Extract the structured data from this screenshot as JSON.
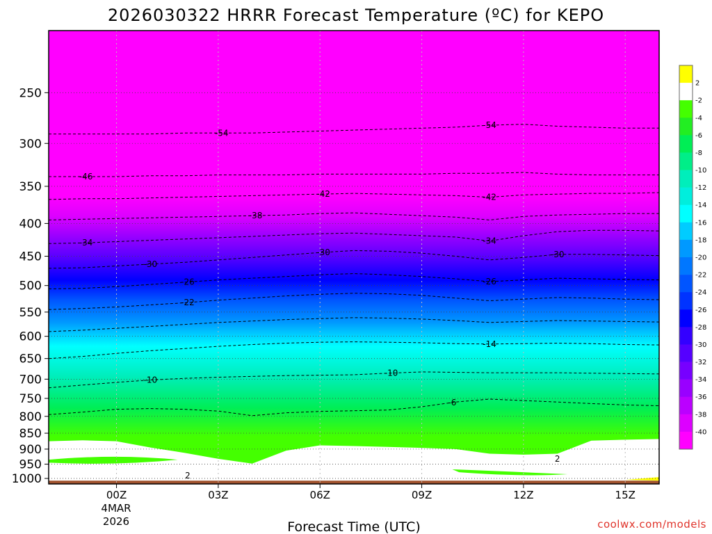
{
  "chart_data": {
    "type": "heatmap",
    "title": "2026030322 HRRR Forecast Temperature (ºC) for KEPO",
    "xlabel": "Forecast Time (UTC)",
    "ylabel": "",
    "credit": "coolwx.com/models",
    "x_ticks": [
      "00Z",
      "03Z",
      "06Z",
      "09Z",
      "12Z",
      "15Z"
    ],
    "x_tick_hours": [
      0,
      3,
      6,
      9,
      12,
      15
    ],
    "x_range_hours": [
      -2,
      16
    ],
    "date_label": [
      "4MAR",
      "2026"
    ],
    "y_ticks": [
      250,
      300,
      350,
      400,
      450,
      500,
      550,
      600,
      650,
      700,
      750,
      800,
      850,
      900,
      950,
      1000
    ],
    "y_range_hPa": [
      200,
      1020
    ],
    "y_scale": "log",
    "colorbar": {
      "labels": [
        "2",
        "-2",
        "-4",
        "-6",
        "-8",
        "-10",
        "-12",
        "-14",
        "-16",
        "-18",
        "-20",
        "-22",
        "-24",
        "-26",
        "-28",
        "-30",
        "-32",
        "-34",
        "-36",
        "-38",
        "-40"
      ],
      "colors": [
        "#ffff00",
        "#ffffff",
        "#44ff00",
        "#22ee22",
        "#00ee55",
        "#00ee88",
        "#00eebb",
        "#00eedd",
        "#00ffff",
        "#00ccff",
        "#0099ff",
        "#0077ff",
        "#0055ff",
        "#0033ff",
        "#0000ff",
        "#3300ff",
        "#5500ff",
        "#7700ff",
        "#9900ff",
        "#bb00ff",
        "#dd00ff",
        "#ff00ff"
      ]
    },
    "time_hours": [
      -2,
      -1,
      0,
      1,
      2,
      3,
      4,
      5,
      6,
      7,
      8,
      9,
      10,
      11,
      12,
      13,
      14,
      15,
      16
    ],
    "isotherms": [
      {
        "t": -54,
        "label": "-54",
        "label_hours": [
          3.1,
          11.0
        ],
        "hPa": [
          290,
          290,
          290,
          290,
          289,
          289,
          289,
          288,
          287,
          286,
          285,
          284,
          283,
          281,
          280,
          282,
          283,
          284,
          284
        ]
      },
      {
        "t": -46,
        "label": "-46",
        "label_hours": [
          -0.9
        ],
        "hPa": [
          338,
          338,
          338,
          337,
          337,
          336,
          336,
          336,
          335,
          335,
          335,
          335,
          334,
          334,
          333,
          335,
          336,
          336,
          336
        ]
      },
      {
        "t": -42,
        "label": "-42",
        "label_hours": [
          6.1,
          11.0
        ],
        "hPa": [
          367,
          366,
          366,
          365,
          364,
          363,
          362,
          361,
          360,
          359,
          360,
          361,
          362,
          364,
          361,
          360,
          359,
          359,
          358
        ]
      },
      {
        "t": -38,
        "label": "-38",
        "label_hours": [
          4.1
        ],
        "hPa": [
          395,
          394,
          393,
          392,
          391,
          390,
          389,
          388,
          386,
          385,
          387,
          389,
          391,
          395,
          390,
          388,
          387,
          386,
          386
        ]
      },
      {
        "t": -34,
        "label": "-34",
        "label_hours": [
          -0.9,
          11.0
        ],
        "hPa": [
          430,
          429,
          427,
          425,
          423,
          421,
          419,
          417,
          415,
          414,
          416,
          418,
          420,
          426,
          418,
          412,
          410,
          410,
          411
        ]
      },
      {
        "t": -30,
        "label": "-30",
        "label_hours": [
          1.0,
          6.1,
          13.0
        ],
        "hPa": [
          470,
          469,
          466,
          463,
          460,
          456,
          452,
          448,
          444,
          441,
          442,
          445,
          450,
          456,
          452,
          447,
          447,
          448,
          449
        ]
      },
      {
        "t": -26,
        "label": "-26",
        "label_hours": [
          2.1,
          11.0
        ],
        "hPa": [
          506,
          505,
          502,
          498,
          494,
          490,
          487,
          484,
          481,
          479,
          481,
          484,
          488,
          493,
          490,
          487,
          488,
          489,
          490
        ]
      },
      {
        "t": -22,
        "label": "-22",
        "label_hours": [
          2.1
        ],
        "hPa": [
          545,
          543,
          540,
          536,
          532,
          527,
          523,
          519,
          516,
          514,
          515,
          518,
          523,
          528,
          525,
          522,
          523,
          525,
          526
        ]
      },
      {
        "t": -18,
        "label": "",
        "label_hours": [],
        "hPa": [
          590,
          587,
          583,
          579,
          575,
          571,
          568,
          565,
          563,
          561,
          562,
          564,
          567,
          571,
          569,
          567,
          568,
          569,
          570
        ]
      },
      {
        "t": -14,
        "label": "-14",
        "label_hours": [
          11.0
        ],
        "hPa": [
          650,
          645,
          638,
          632,
          627,
          622,
          618,
          615,
          613,
          612,
          613,
          614,
          616,
          617,
          616,
          615,
          616,
          618,
          619
        ]
      },
      {
        "t": -10,
        "label": "-10",
        "label_hours": [
          1.0,
          8.1
        ],
        "hPa": [
          722,
          715,
          708,
          702,
          698,
          695,
          693,
          691,
          690,
          689,
          685,
          682,
          683,
          684,
          684,
          684,
          685,
          686,
          687
        ]
      },
      {
        "t": -6,
        "label": "-6",
        "label_hours": [
          9.9
        ],
        "hPa": [
          795,
          788,
          780,
          778,
          780,
          785,
          798,
          790,
          786,
          784,
          782,
          773,
          760,
          752,
          756,
          760,
          764,
          768,
          770
        ]
      }
    ],
    "freezing_level_note": "Surface-based 0 to -2 (white) layer below ~880 hPa; label 2 near 1000 hPa at 02Z and near 930 hPa at 13Z"
  }
}
